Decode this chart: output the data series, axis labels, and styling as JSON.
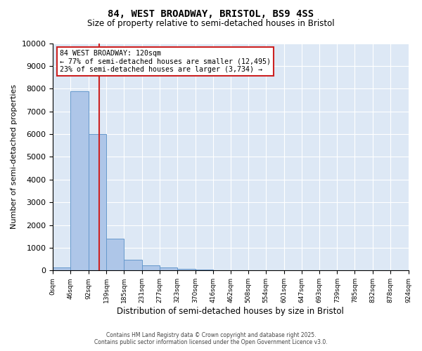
{
  "title": "84, WEST BROADWAY, BRISTOL, BS9 4SS",
  "subtitle": "Size of property relative to semi-detached houses in Bristol",
  "xlabel": "Distribution of semi-detached houses by size in Bristol",
  "ylabel": "Number of semi-detached properties",
  "annotation_text_line1": "84 WEST BROADWAY: 120sqm",
  "annotation_text_line2": "← 77% of semi-detached houses are smaller (12,495)",
  "annotation_text_line3": "23% of semi-detached houses are larger (3,734) →",
  "bin_edges": [
    0,
    46,
    92,
    139,
    185,
    231,
    277,
    323,
    370,
    416,
    462,
    508,
    554,
    601,
    647,
    693,
    739,
    785,
    832,
    878,
    924
  ],
  "bin_labels": [
    "0sqm",
    "46sqm",
    "92sqm",
    "139sqm",
    "185sqm",
    "231sqm",
    "277sqm",
    "323sqm",
    "370sqm",
    "416sqm",
    "462sqm",
    "508sqm",
    "554sqm",
    "601sqm",
    "647sqm",
    "693sqm",
    "739sqm",
    "785sqm",
    "832sqm",
    "878sqm",
    "924sqm"
  ],
  "counts": [
    130,
    7900,
    6000,
    1400,
    480,
    220,
    120,
    80,
    50,
    0,
    0,
    0,
    0,
    0,
    0,
    0,
    0,
    0,
    0,
    0
  ],
  "bar_color": "#aec6e8",
  "bar_edge_color": "#6699cc",
  "vline_x": 120,
  "vline_color": "#cc2222",
  "annotation_box_edge_color": "#cc2222",
  "background_color": "#dde8f5",
  "ylim": [
    0,
    10000
  ],
  "yticks": [
    0,
    1000,
    2000,
    3000,
    4000,
    5000,
    6000,
    7000,
    8000,
    9000,
    10000
  ],
  "footer_line1": "Contains HM Land Registry data © Crown copyright and database right 2025.",
  "footer_line2": "Contains public sector information licensed under the Open Government Licence v3.0."
}
